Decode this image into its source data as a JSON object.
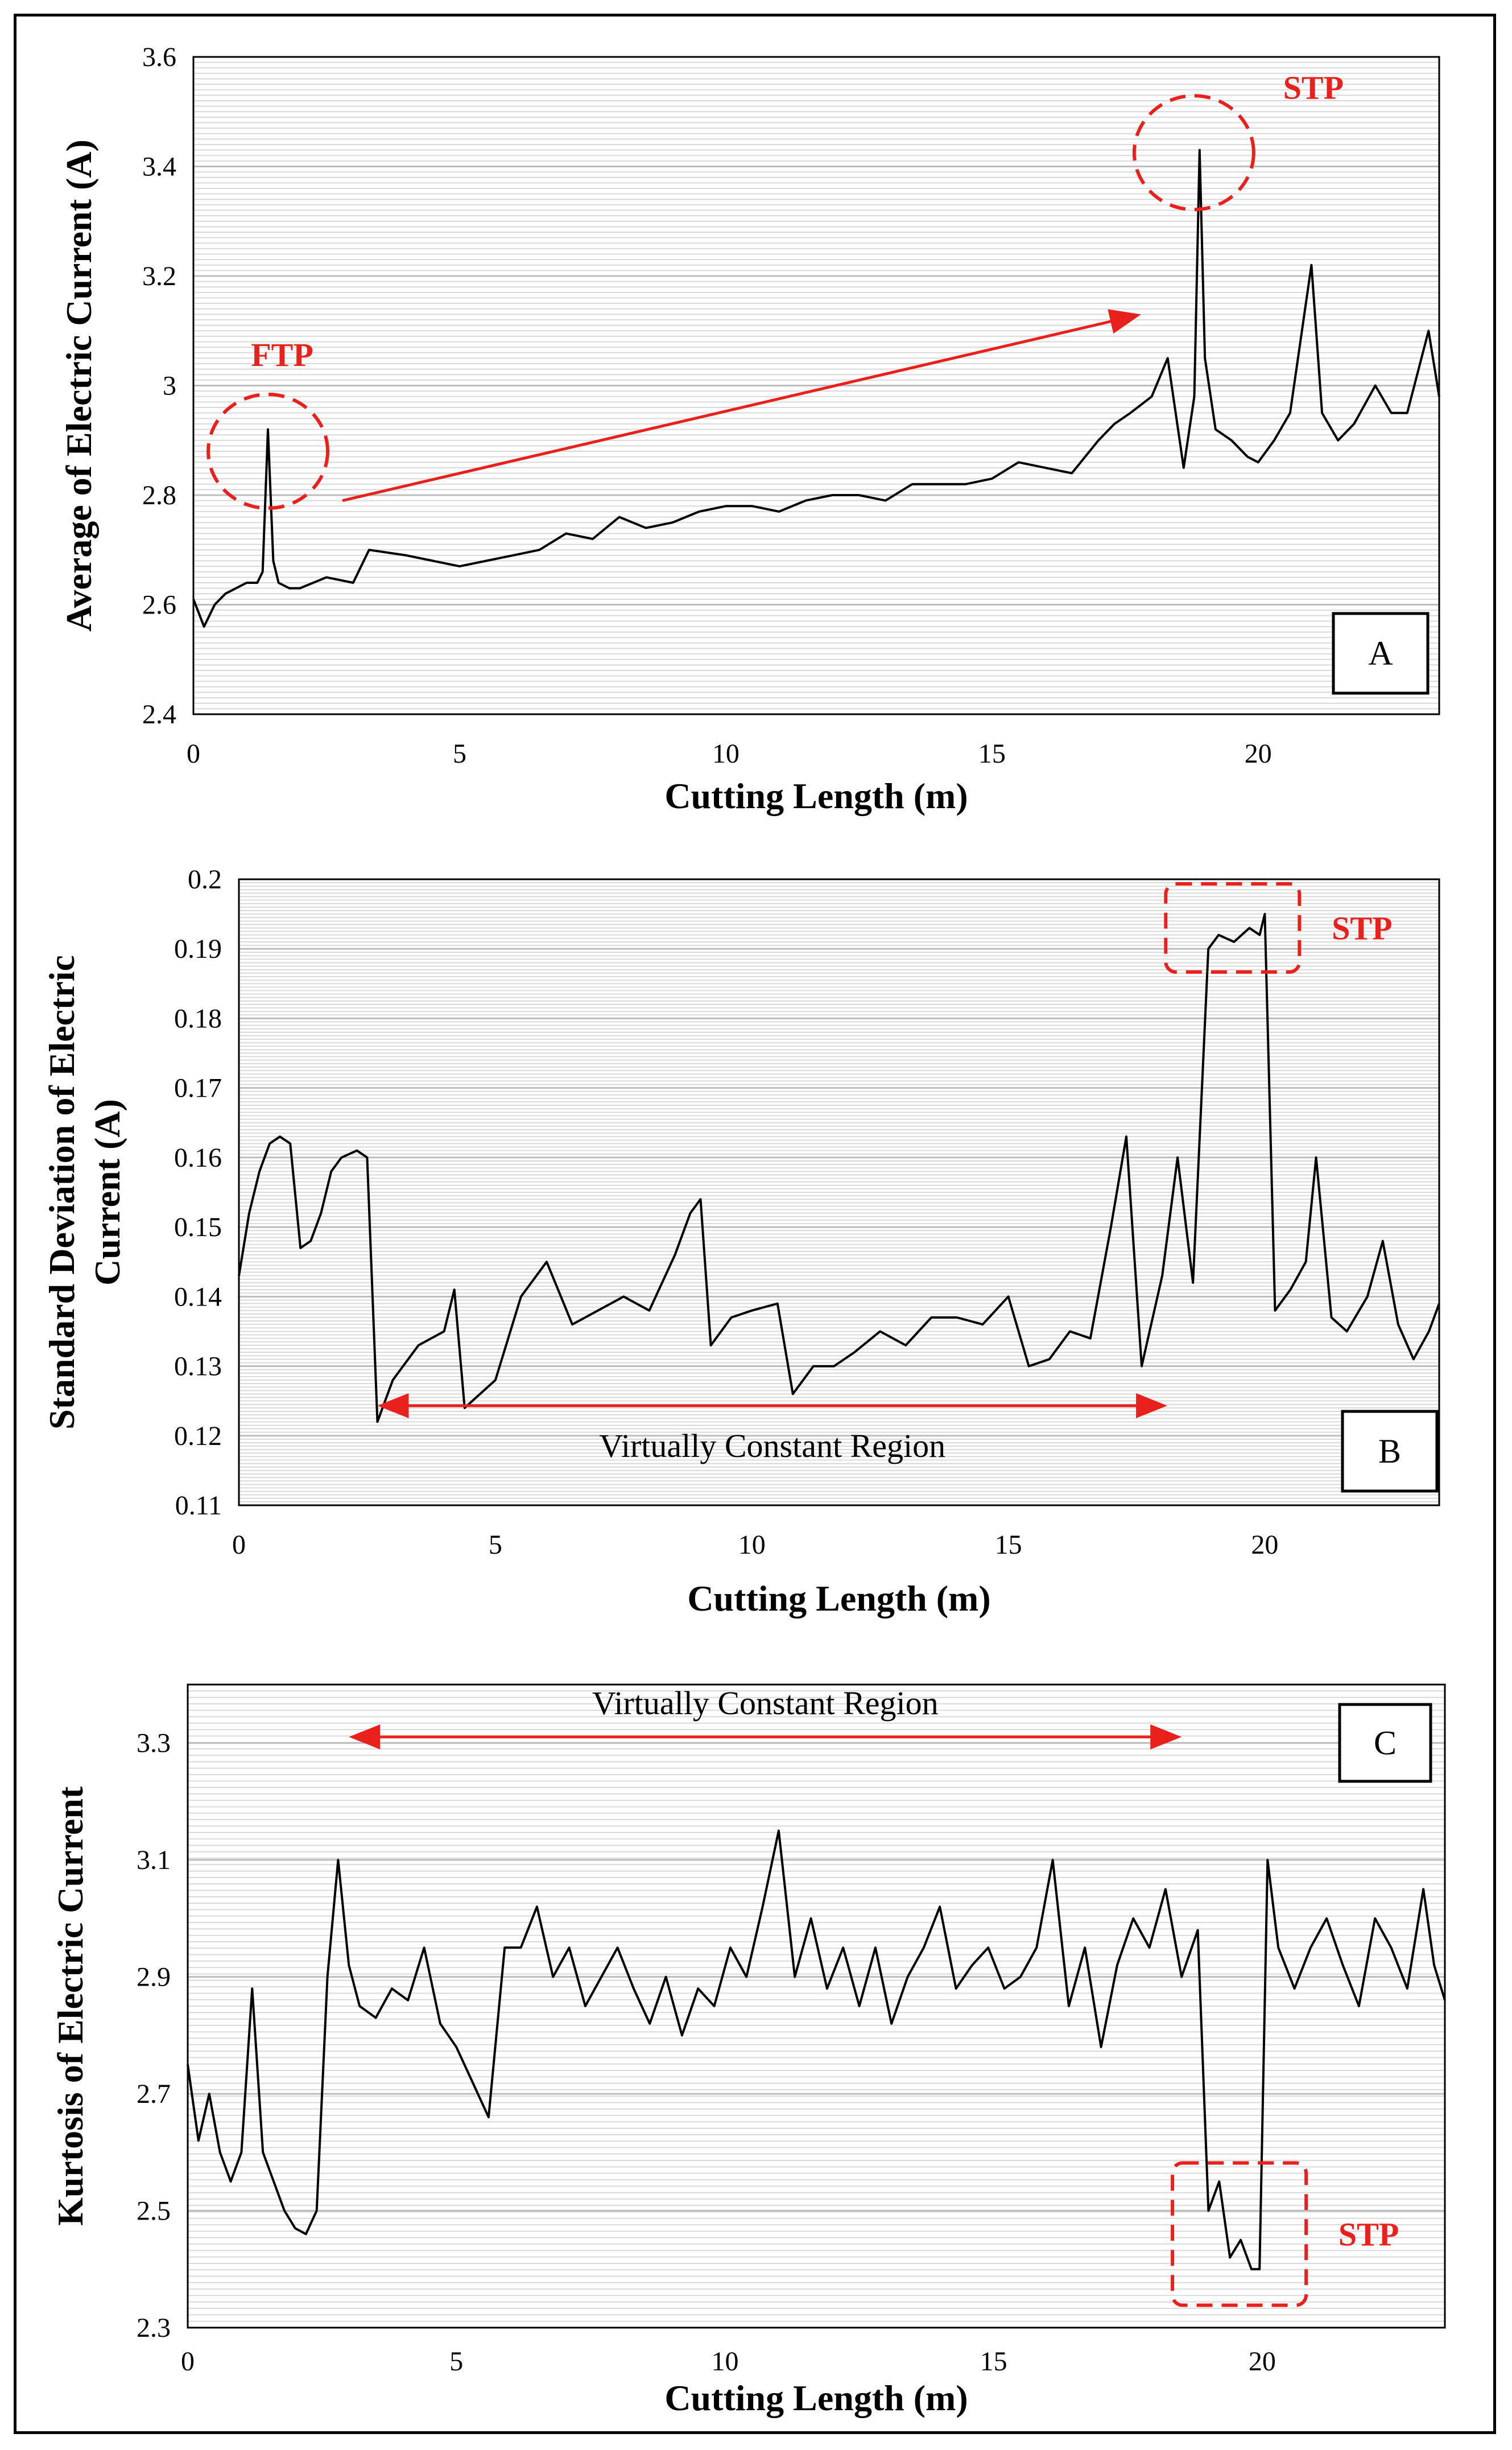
{
  "charts": [
    {
      "id": "A",
      "type": "line",
      "panel_label": "A",
      "xlabel": "Cutting Length (m)",
      "ylabel": "Average of Electric Current (A)",
      "xlim": [
        0,
        23.4
      ],
      "ylim": [
        2.4,
        3.6
      ],
      "xticks": [
        "0",
        "5",
        "10",
        "15",
        "20"
      ],
      "xtick_values": [
        0,
        5,
        10,
        15,
        20
      ],
      "yticks": [
        "2.4",
        "2.6",
        "2.8",
        "3",
        "3.2",
        "3.4",
        "3.6"
      ],
      "ytick_values": [
        2.4,
        2.6,
        2.8,
        3.0,
        3.2,
        3.4,
        3.6
      ],
      "annotations": [
        {
          "text": "FTP",
          "at": [
            1.4,
            2.88
          ]
        },
        {
          "text": "STP",
          "at": [
            18.9,
            3.42
          ]
        }
      ],
      "series": [
        {
          "name": "Average",
          "x": [
            0,
            0.2,
            0.4,
            0.6,
            0.8,
            1.0,
            1.2,
            1.3,
            1.4,
            1.5,
            1.6,
            1.8,
            2.0,
            2.5,
            3.0,
            3.3,
            4.0,
            4.5,
            5.0,
            5.5,
            6.0,
            6.5,
            7.0,
            7.5,
            8.0,
            8.5,
            9.0,
            9.5,
            10.0,
            10.5,
            11.0,
            11.5,
            12.0,
            12.5,
            13.0,
            13.5,
            14.0,
            14.5,
            15.0,
            15.5,
            16.0,
            16.5,
            17.0,
            17.3,
            17.6,
            18.0,
            18.3,
            18.6,
            18.8,
            18.9,
            19.0,
            19.2,
            19.5,
            19.8,
            20.0,
            20.3,
            20.6,
            21.0,
            21.2,
            21.5,
            21.8,
            22.2,
            22.5,
            22.8,
            23.2,
            23.4
          ],
          "y": [
            2.61,
            2.56,
            2.6,
            2.62,
            2.63,
            2.64,
            2.64,
            2.66,
            2.92,
            2.68,
            2.64,
            2.63,
            2.63,
            2.65,
            2.64,
            2.7,
            2.69,
            2.68,
            2.67,
            2.68,
            2.69,
            2.7,
            2.73,
            2.72,
            2.76,
            2.74,
            2.75,
            2.77,
            2.78,
            2.78,
            2.77,
            2.79,
            2.8,
            2.8,
            2.79,
            2.82,
            2.82,
            2.82,
            2.83,
            2.86,
            2.85,
            2.84,
            2.9,
            2.93,
            2.95,
            2.98,
            3.05,
            2.85,
            2.98,
            3.43,
            3.05,
            2.92,
            2.9,
            2.87,
            2.86,
            2.9,
            2.95,
            3.22,
            2.95,
            2.9,
            2.93,
            3.0,
            2.95,
            2.95,
            3.1,
            2.98
          ]
        }
      ]
    },
    {
      "id": "B",
      "type": "line",
      "panel_label": "B",
      "xlabel": "Cutting Length (m)",
      "ylabel_line1": "Standard Deviation of Electric",
      "ylabel_line2": "Current (A)",
      "xlim": [
        0,
        23.4
      ],
      "ylim": [
        0.11,
        0.2
      ],
      "xticks": [
        "0",
        "5",
        "10",
        "15",
        "20"
      ],
      "xtick_values": [
        0,
        5,
        10,
        15,
        20
      ],
      "yticks": [
        "0.11",
        "0.12",
        "0.13",
        "0.14",
        "0.15",
        "0.16",
        "0.17",
        "0.18",
        "0.19",
        "0.2"
      ],
      "ytick_values": [
        0.11,
        0.12,
        0.13,
        0.14,
        0.15,
        0.16,
        0.17,
        0.18,
        0.19,
        0.2
      ],
      "annotations": [
        {
          "text": "Virtually Constant Region",
          "from": 2.7,
          "to": 18.1
        },
        {
          "text": "STP",
          "at": [
            19.4,
            0.193
          ]
        }
      ],
      "series": [
        {
          "name": "Std Dev",
          "x": [
            0,
            0.2,
            0.4,
            0.6,
            0.8,
            1.0,
            1.2,
            1.4,
            1.6,
            1.8,
            2.0,
            2.3,
            2.5,
            2.7,
            3.0,
            3.5,
            4.0,
            4.2,
            4.4,
            5.0,
            5.5,
            6.0,
            6.5,
            7.0,
            7.5,
            8.0,
            8.5,
            8.8,
            9.0,
            9.2,
            9.6,
            10.0,
            10.5,
            10.8,
            11.2,
            11.6,
            12.0,
            12.5,
            13.0,
            13.5,
            14.0,
            14.5,
            15.0,
            15.4,
            15.8,
            16.2,
            16.6,
            17.0,
            17.3,
            17.6,
            18.0,
            18.3,
            18.6,
            18.9,
            19.1,
            19.4,
            19.7,
            19.9,
            20.0,
            20.2,
            20.5,
            20.8,
            21.0,
            21.3,
            21.6,
            22.0,
            22.3,
            22.6,
            22.9,
            23.2,
            23.4
          ],
          "y": [
            0.143,
            0.152,
            0.158,
            0.162,
            0.163,
            0.162,
            0.147,
            0.148,
            0.152,
            0.158,
            0.16,
            0.161,
            0.16,
            0.122,
            0.128,
            0.133,
            0.135,
            0.141,
            0.124,
            0.128,
            0.14,
            0.145,
            0.136,
            0.138,
            0.14,
            0.138,
            0.146,
            0.152,
            0.154,
            0.133,
            0.137,
            0.138,
            0.139,
            0.126,
            0.13,
            0.13,
            0.132,
            0.135,
            0.133,
            0.137,
            0.137,
            0.136,
            0.14,
            0.13,
            0.131,
            0.135,
            0.134,
            0.15,
            0.163,
            0.13,
            0.143,
            0.16,
            0.142,
            0.19,
            0.192,
            0.191,
            0.193,
            0.192,
            0.195,
            0.138,
            0.141,
            0.145,
            0.16,
            0.137,
            0.135,
            0.14,
            0.148,
            0.136,
            0.131,
            0.135,
            0.139
          ]
        }
      ]
    },
    {
      "id": "C",
      "type": "line",
      "panel_label": "C",
      "xlabel": "Cutting Length (m)",
      "ylabel": "Kurtosis of Electric Current",
      "xlim": [
        0,
        23.4
      ],
      "ylim": [
        2.3,
        3.4
      ],
      "xticks": [
        "0",
        "5",
        "10",
        "15",
        "20"
      ],
      "xtick_values": [
        0,
        5,
        10,
        15,
        20
      ],
      "yticks": [
        "2.3",
        "2.5",
        "2.7",
        "2.9",
        "3.1",
        "3.3"
      ],
      "ytick_values": [
        2.3,
        2.5,
        2.7,
        2.9,
        3.1,
        3.3
      ],
      "annotations": [
        {
          "text": "Virtually Constant Region",
          "from": 3.0,
          "to": 18.5
        },
        {
          "text": "STP",
          "at": [
            19.6,
            2.46
          ]
        }
      ],
      "series": [
        {
          "name": "Kurtosis",
          "x": [
            0,
            0.2,
            0.4,
            0.6,
            0.8,
            1.0,
            1.2,
            1.4,
            1.6,
            1.8,
            2.0,
            2.2,
            2.4,
            2.6,
            2.8,
            3.0,
            3.2,
            3.5,
            3.8,
            4.1,
            4.4,
            4.7,
            5.0,
            5.3,
            5.6,
            5.9,
            6.2,
            6.5,
            6.8,
            7.1,
            7.4,
            7.7,
            8.0,
            8.3,
            8.6,
            8.9,
            9.2,
            9.5,
            9.8,
            10.1,
            10.4,
            10.7,
            11.0,
            11.3,
            11.6,
            11.9,
            12.2,
            12.5,
            12.8,
            13.1,
            13.4,
            13.7,
            14.0,
            14.3,
            14.6,
            14.9,
            15.2,
            15.5,
            15.8,
            16.1,
            16.4,
            16.7,
            17.0,
            17.3,
            17.6,
            17.9,
            18.2,
            18.5,
            18.8,
            19.0,
            19.2,
            19.4,
            19.6,
            19.8,
            19.95,
            20.1,
            20.3,
            20.6,
            20.9,
            21.2,
            21.5,
            21.8,
            22.1,
            22.4,
            22.7,
            23.0,
            23.2,
            23.4
          ],
          "y": [
            2.75,
            2.62,
            2.7,
            2.6,
            2.55,
            2.6,
            2.88,
            2.6,
            2.55,
            2.5,
            2.47,
            2.46,
            2.5,
            2.9,
            3.1,
            2.92,
            2.85,
            2.83,
            2.88,
            2.86,
            2.95,
            2.82,
            2.78,
            2.72,
            2.66,
            2.95,
            2.95,
            3.02,
            2.9,
            2.95,
            2.85,
            2.9,
            2.95,
            2.88,
            2.82,
            2.9,
            2.8,
            2.88,
            2.85,
            2.95,
            2.9,
            3.02,
            3.15,
            2.9,
            3.0,
            2.88,
            2.95,
            2.85,
            2.95,
            2.82,
            2.9,
            2.95,
            3.02,
            2.88,
            2.92,
            2.95,
            2.88,
            2.9,
            2.95,
            3.1,
            2.85,
            2.95,
            2.78,
            2.92,
            3.0,
            2.95,
            3.05,
            2.9,
            2.98,
            2.5,
            2.55,
            2.42,
            2.45,
            2.4,
            2.4,
            3.1,
            2.95,
            2.88,
            2.95,
            3.0,
            2.92,
            2.85,
            3.0,
            2.95,
            2.88,
            3.05,
            2.92,
            2.86
          ]
        }
      ]
    }
  ]
}
